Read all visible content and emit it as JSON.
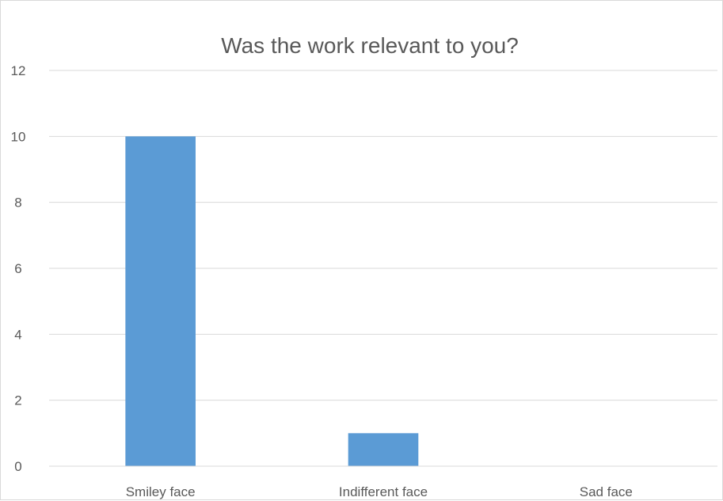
{
  "chart_data": {
    "type": "bar",
    "title": "Was the work relevant to you?",
    "categories": [
      "Smiley face",
      "Indifferent face",
      "Sad face"
    ],
    "values": [
      10,
      1,
      0
    ],
    "ylim": [
      0,
      12
    ],
    "yticks": [
      0,
      2,
      4,
      6,
      8,
      10,
      12
    ],
    "xlabel": "",
    "ylabel": "",
    "grid": true,
    "legend": "none",
    "colors": {
      "bar": "#5b9bd5"
    }
  }
}
